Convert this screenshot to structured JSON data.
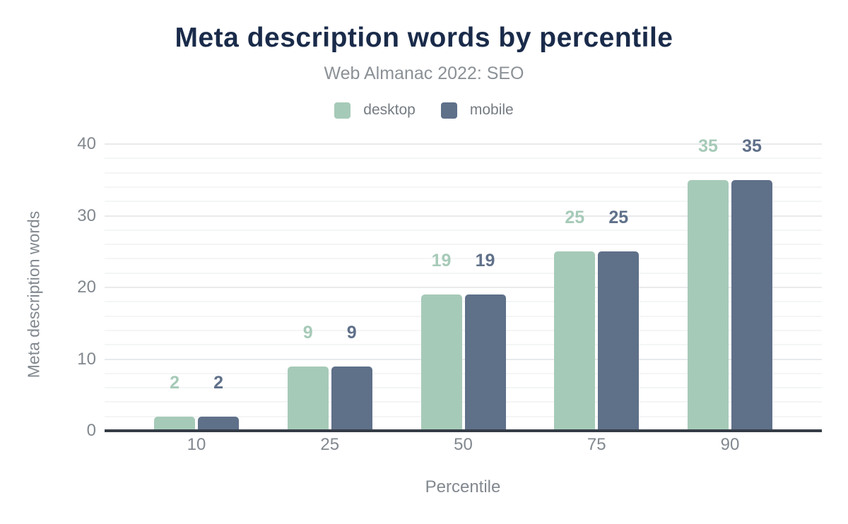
{
  "chart_data": {
    "type": "bar",
    "title": "Meta description words by percentile",
    "subtitle": "Web Almanac 2022: SEO",
    "xlabel": "Percentile",
    "ylabel": "Meta description words",
    "categories": [
      "10",
      "25",
      "50",
      "75",
      "90"
    ],
    "series": [
      {
        "name": "desktop",
        "color": "#a6cab8",
        "values": [
          2,
          9,
          19,
          25,
          35
        ]
      },
      {
        "name": "mobile",
        "color": "#5f7089",
        "values": [
          2,
          9,
          19,
          25,
          35
        ]
      }
    ],
    "ylim": [
      0,
      40
    ],
    "y_ticks": [
      0,
      10,
      20,
      30,
      40
    ],
    "minor_grid_step": 2,
    "major_grid_step": 10,
    "grid": true,
    "legend_position": "top-center"
  },
  "colors": {
    "title": "#1a2b4a",
    "axis_text": "#82888f",
    "subtitle_text": "#8b9196",
    "axis_line": "#343c46",
    "major_grid": "#e8eaec",
    "minor_grid": "#f4f5f6",
    "background": "#ffffff"
  }
}
